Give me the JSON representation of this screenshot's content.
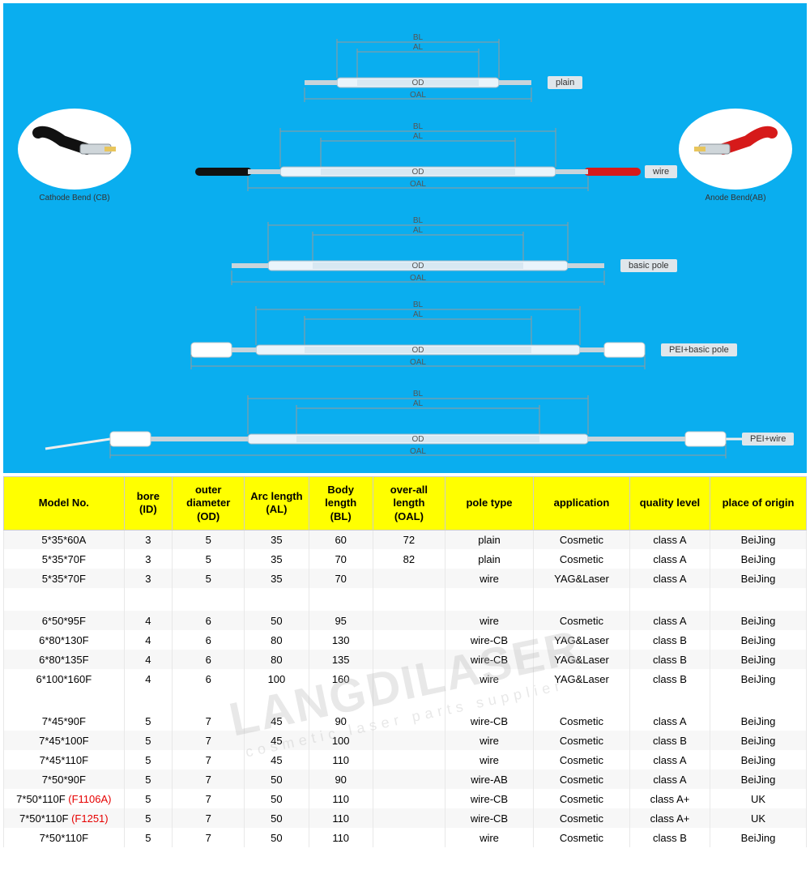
{
  "diagram": {
    "background_color": "#0aaeef",
    "lamp_types": [
      {
        "label": "plain",
        "left_bend": null,
        "right_bend": null,
        "oal_w": 280,
        "bl_w": 200,
        "al_w": 150
      },
      {
        "label": "wire",
        "left_bend": "black",
        "right_bend": "red",
        "oal_w": 420,
        "bl_w": 340,
        "al_w": 240
      },
      {
        "label": "basic pole",
        "left_bend": null,
        "right_bend": null,
        "oal_w": 460,
        "bl_w": 370,
        "al_w": 260
      },
      {
        "label": "PEI+basic pole",
        "left_bend": null,
        "right_bend": null,
        "oal_w": 560,
        "bl_w": 400,
        "al_w": 280
      },
      {
        "label": "PEI+wire",
        "left_bend": null,
        "right_bend": null,
        "oal_w": 760,
        "bl_w": 420,
        "al_w": 300
      }
    ],
    "dim_labels": {
      "bl": "BL",
      "al": "AL",
      "od": "OD",
      "oal": "OAL"
    },
    "callouts": {
      "cathode": {
        "caption": "Cathode Bend (CB)",
        "cable_color": "#111"
      },
      "anode": {
        "caption": "Anode Bend(AB)",
        "cable_color": "#d61a1a"
      }
    }
  },
  "table": {
    "columns": [
      "Model No.",
      "bore (ID)",
      "outer diameter (OD)",
      "Arc length (AL)",
      "Body length (BL)",
      "over-all length (OAL)",
      "pole type",
      "application",
      "quality level",
      "place of origin"
    ],
    "col_widths_pct": [
      15,
      6,
      9,
      8,
      8,
      9,
      11,
      12,
      10,
      12
    ],
    "rows": [
      {
        "cells": [
          "5*35*60A",
          "3",
          "5",
          "35",
          "60",
          "72",
          "plain",
          "Cosmetic",
          "class A",
          "BeiJing"
        ]
      },
      {
        "cells": [
          "5*35*70F",
          "3",
          "5",
          "35",
          "70",
          "82",
          "plain",
          "Cosmetic",
          "class A",
          "BeiJing"
        ]
      },
      {
        "cells": [
          "5*35*70F",
          "3",
          "5",
          "35",
          "70",
          "",
          "wire",
          "YAG&Laser",
          "class A",
          "BeiJing"
        ]
      },
      {
        "gap": true
      },
      {
        "cells": [
          "6*50*95F",
          "4",
          "6",
          "50",
          "95",
          "",
          "wire",
          "Cosmetic",
          "class A",
          "BeiJing"
        ]
      },
      {
        "cells": [
          "6*80*130F",
          "4",
          "6",
          "80",
          "130",
          "",
          "wire-CB",
          "YAG&Laser",
          "class B",
          "BeiJing"
        ]
      },
      {
        "cells": [
          "6*80*135F",
          "4",
          "6",
          "80",
          "135",
          "",
          "wire-CB",
          "YAG&Laser",
          "class B",
          "BeiJing"
        ]
      },
      {
        "cells": [
          "6*100*160F",
          "4",
          "6",
          "100",
          "160",
          "",
          "wire",
          "YAG&Laser",
          "class B",
          "BeiJing"
        ]
      },
      {
        "gap": true
      },
      {
        "cells": [
          "7*45*90F",
          "5",
          "7",
          "45",
          "90",
          "",
          "wire-CB",
          "Cosmetic",
          "class A",
          "BeiJing"
        ]
      },
      {
        "cells": [
          "7*45*100F",
          "5",
          "7",
          "45",
          "100",
          "",
          "wire",
          "Cosmetic",
          "class B",
          "BeiJing"
        ]
      },
      {
        "cells": [
          "7*45*110F",
          "5",
          "7",
          "45",
          "110",
          "",
          "wire",
          "Cosmetic",
          "class A",
          "BeiJing"
        ]
      },
      {
        "cells": [
          "7*50*90F",
          "5",
          "7",
          "50",
          "90",
          "",
          "wire-AB",
          "Cosmetic",
          "class A",
          "BeiJing"
        ]
      },
      {
        "cells": [
          "7*50*110F (F1106A)",
          "5",
          "7",
          "50",
          "110",
          "",
          "wire-CB",
          "Cosmetic",
          "class A+",
          "UK"
        ],
        "model_red_suffix": "(F1106A)"
      },
      {
        "cells": [
          "7*50*110F (F1251)",
          "5",
          "7",
          "50",
          "110",
          "",
          "wire-CB",
          "Cosmetic",
          "class A+",
          "UK"
        ],
        "model_red_suffix": "(F1251)"
      },
      {
        "cells": [
          "7*50*110F",
          "5",
          "7",
          "50",
          "110",
          "",
          "wire",
          "Cosmetic",
          "class B",
          "BeiJing"
        ]
      }
    ]
  },
  "watermark": {
    "main": "LANGDILASER",
    "sub": "cosmetic laser parts supplier"
  },
  "colors": {
    "header_bg": "#ffff00",
    "row_alt": "#f7f7f7",
    "border": "#e8e8e8",
    "cable_black": "#111111",
    "cable_red": "#d61a1a",
    "glass": "#eaf4fb",
    "glass_stroke": "#9fb9c8"
  }
}
